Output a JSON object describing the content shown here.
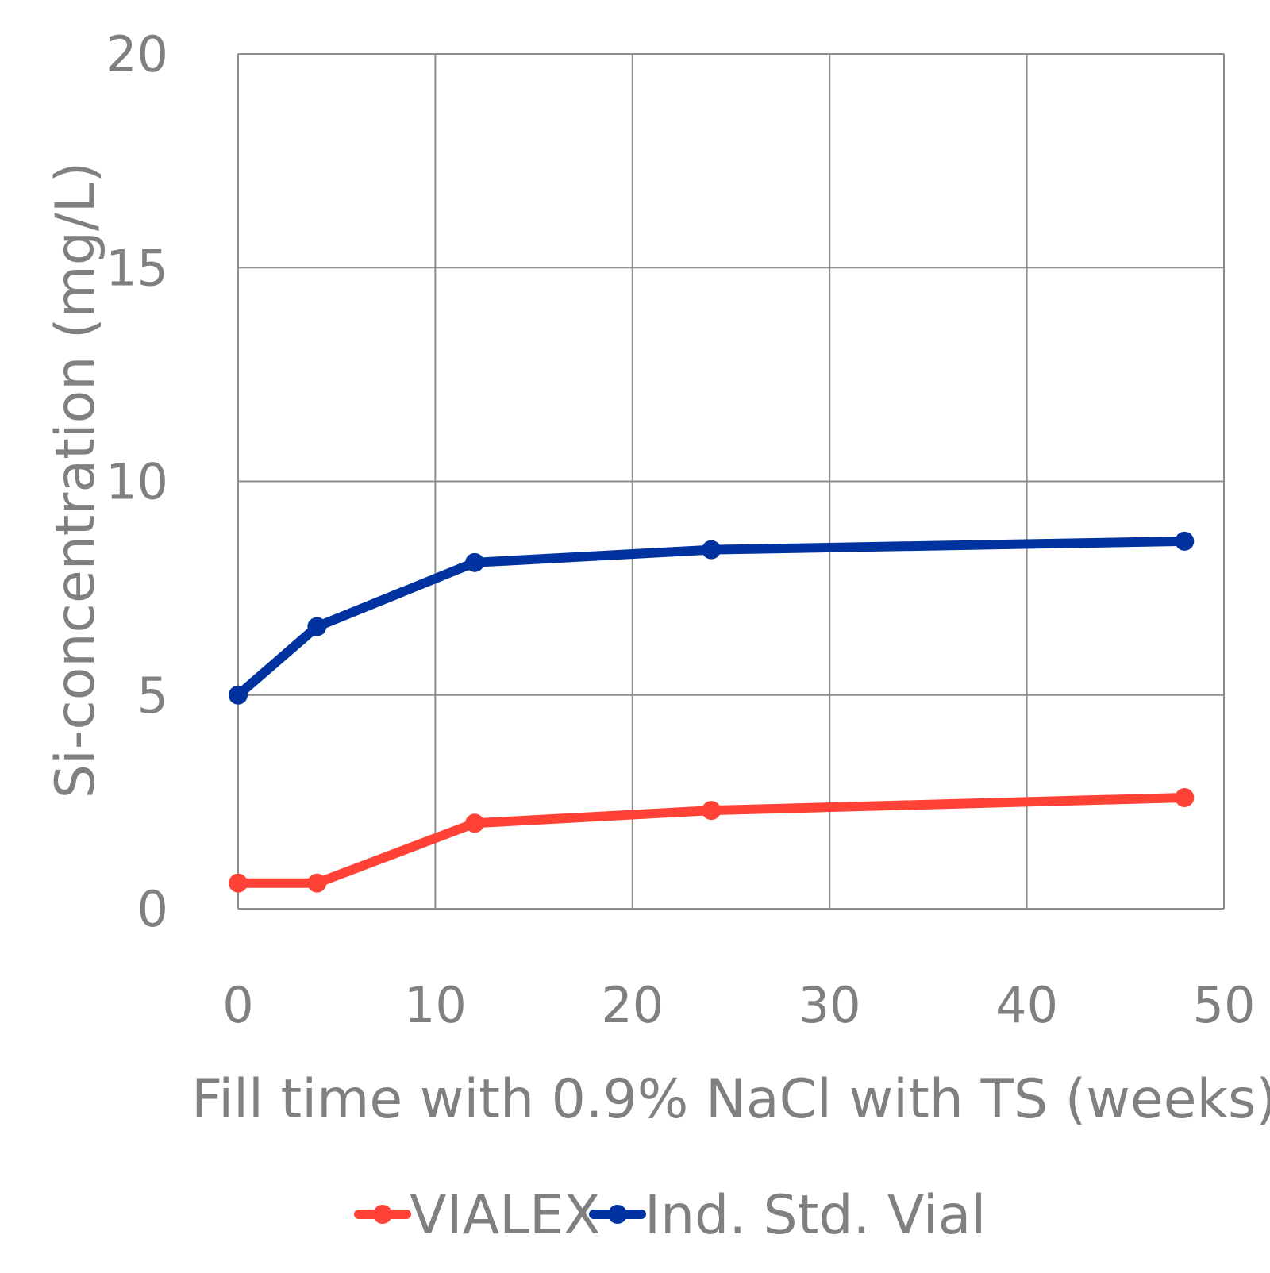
{
  "chart_data": {
    "type": "line",
    "title": "",
    "xlabel": "Fill time with 0.9% NaCl with TS (weeks)",
    "ylabel": "Si-concentration (mg/L)",
    "xlim": [
      0,
      50
    ],
    "ylim": [
      0,
      20
    ],
    "xticks": [
      0,
      10,
      20,
      30,
      40,
      50
    ],
    "yticks": [
      0,
      5,
      10,
      15,
      20
    ],
    "grid": true,
    "legend_position": "bottom",
    "series": [
      {
        "name": "VIALEX",
        "color": "#ff4136",
        "points": [
          {
            "x": 0,
            "y": 0.6
          },
          {
            "x": 4,
            "y": 0.6
          },
          {
            "x": 12,
            "y": 2.0
          },
          {
            "x": 24,
            "y": 2.3
          },
          {
            "x": 48,
            "y": 2.6
          }
        ]
      },
      {
        "name": "Ind. Std. Vial",
        "color": "#0033a0",
        "points": [
          {
            "x": 0,
            "y": 5.0
          },
          {
            "x": 4,
            "y": 6.6
          },
          {
            "x": 12,
            "y": 8.1
          },
          {
            "x": 24,
            "y": 8.4
          },
          {
            "x": 48,
            "y": 8.6
          }
        ]
      }
    ]
  }
}
